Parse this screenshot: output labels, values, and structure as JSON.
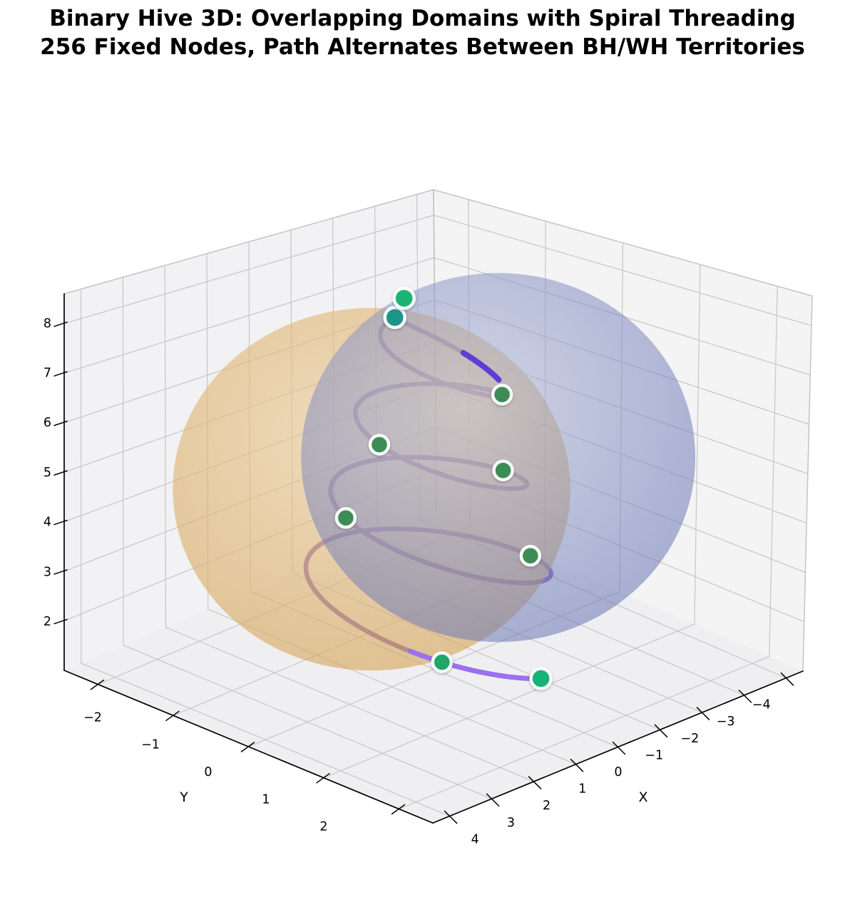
{
  "title": {
    "line1": "Binary Hive 3D: Overlapping Domains with Spiral Threading",
    "line2": "256 Fixed Nodes, Path Alternates Between BH/WH Territories"
  },
  "chart_data": {
    "type": "scatter",
    "subtype": "3d-spiral-with-overlapping-sphere-domains",
    "grid": true,
    "axes": {
      "x": {
        "label": "X",
        "ticks": [
          4,
          3,
          2,
          1,
          0,
          -1,
          -2,
          -3,
          -4
        ],
        "range": [
          -4.4,
          4.4
        ]
      },
      "y": {
        "label": "Y",
        "ticks": [
          -2,
          -1,
          0,
          1,
          2
        ],
        "range": [
          -2.45,
          2.45
        ]
      },
      "z": {
        "ticks": [
          2,
          3,
          4,
          5,
          6,
          7,
          8
        ],
        "range": [
          1.0,
          8.6
        ]
      }
    },
    "spheres": [
      {
        "name": "bh-territory",
        "center": [
          0.76,
          -0.41,
          4.7
        ],
        "radius": 2.31,
        "radius_z": 3.3,
        "color": "#D2A050",
        "color_light": "#ECCB96",
        "opacity": 0.62
      },
      {
        "name": "wh-territory",
        "center": [
          -0.76,
          0.41,
          5.34
        ],
        "radius": 2.29,
        "radius_z": 3.38,
        "color": "#5F6CAE",
        "color_light": "#B3BBD9",
        "opacity": 0.55
      }
    ],
    "spiral": {
      "turns": 3.5,
      "theta_bottom_deg": 80,
      "theta_top_deg": 260,
      "z_bottom": 1.9,
      "z_top": 7.9,
      "r_bottom": 1.6,
      "r_top": 0.6,
      "tip": {
        "theta_from": 150,
        "theta_to": 260,
        "z_from": 6.95,
        "z_to": 7.9,
        "r_from": 0.85,
        "r_to": 0.6
      },
      "color": "#7E58B8",
      "bright_color": "#9A70F0",
      "tip_color": "#5532D8",
      "width": 6.5
    },
    "nodes": [
      {
        "t": 1.0,
        "color": "#17B377",
        "r": 14
      },
      {
        "t": 0.965,
        "color": "#23A568",
        "r": 13
      },
      {
        "t": 0.79,
        "color": "#3D8B55",
        "r": 13
      },
      {
        "t": 0.655,
        "color": "#3D8B55",
        "r": 13
      },
      {
        "t": 0.53,
        "color": "#3D8B55",
        "r": 13
      },
      {
        "t": 0.4,
        "color": "#3D8B55",
        "r": 13
      },
      {
        "t": 0.24,
        "color": "#3D8B55",
        "r": 13
      },
      {
        "t": 0.07,
        "color": "#1A9589",
        "r": 14
      },
      {
        "t": 0.07,
        "offset": [
          13,
          -27
        ],
        "color": "#1EB375",
        "r": 14
      }
    ],
    "node_halo_color": "#FFFFFF"
  }
}
